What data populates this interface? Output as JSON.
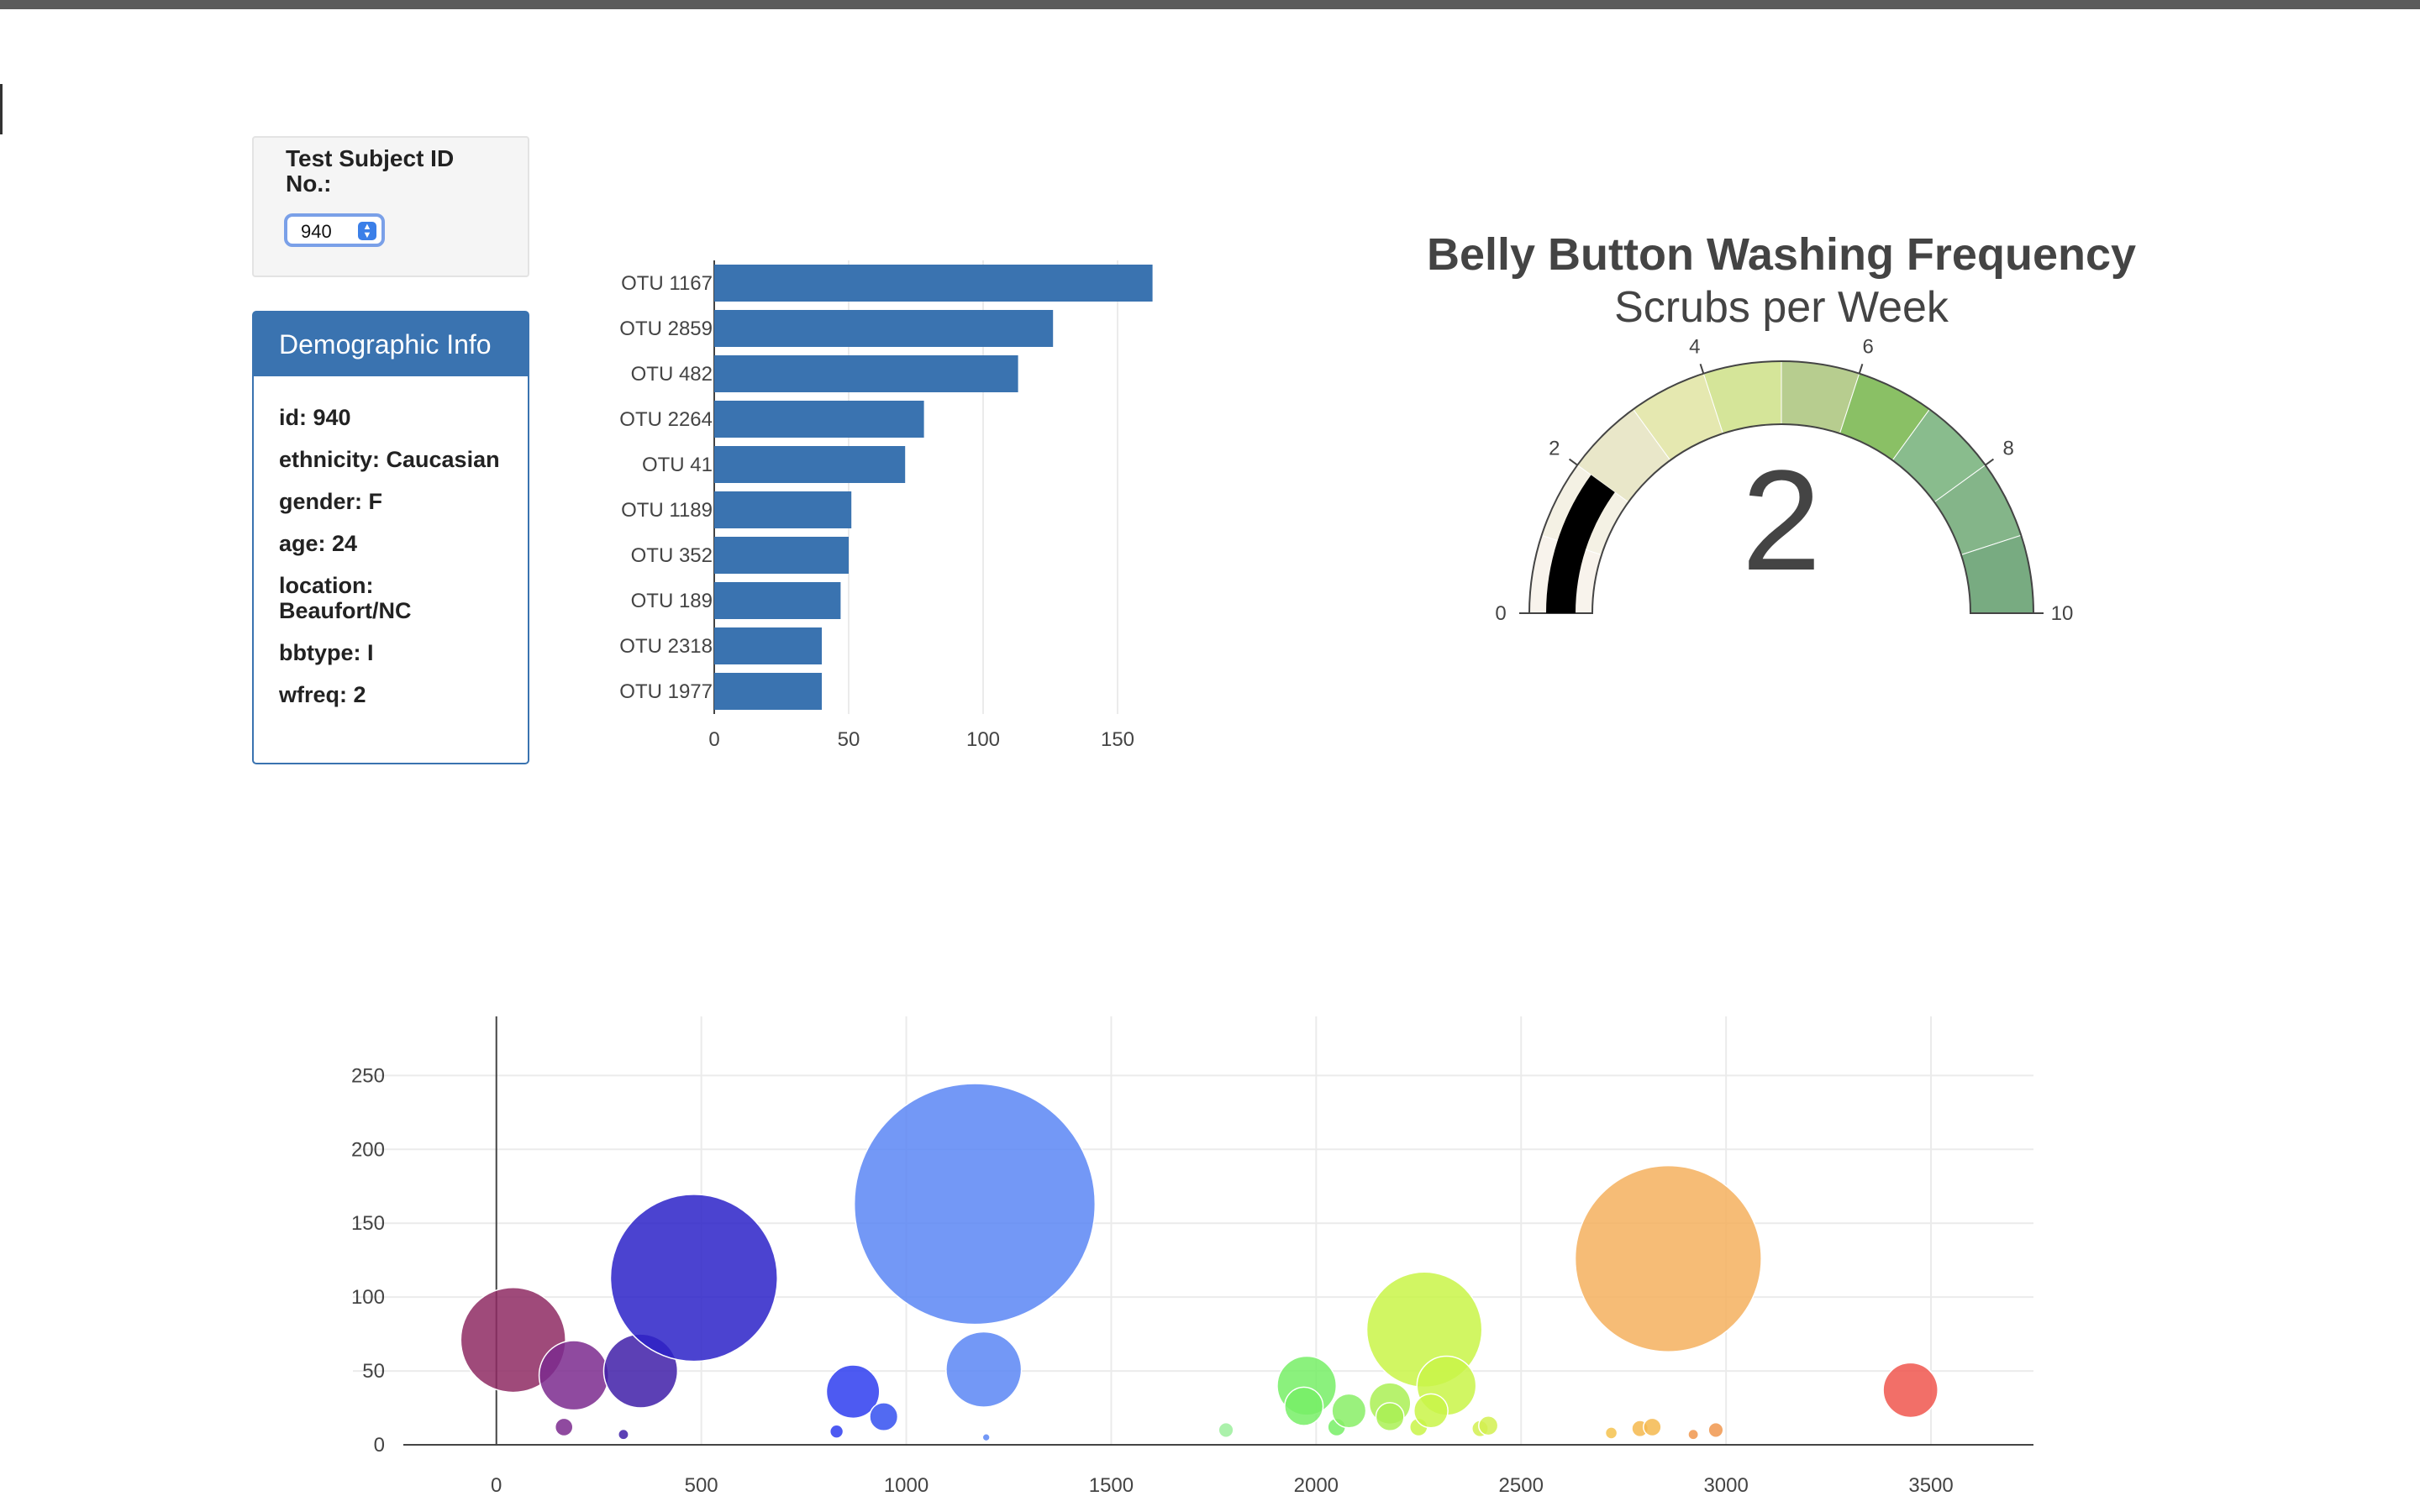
{
  "selector": {
    "label": "Test Subject ID No.:",
    "value": "940"
  },
  "demographics": {
    "title": "Demographic Info",
    "rows": [
      "id: 940",
      "ethnicity: Caucasian",
      "gender: F",
      "age: 24",
      "location: Beaufort/NC",
      "bbtype: I",
      "wfreq: 2"
    ]
  },
  "chart_data": [
    {
      "type": "bar",
      "orientation": "horizontal",
      "categories": [
        "OTU 1167",
        "OTU 2859",
        "OTU 482",
        "OTU 2264",
        "OTU 41",
        "OTU 1189",
        "OTU 352",
        "OTU 189",
        "OTU 2318",
        "OTU 1977"
      ],
      "values": [
        163,
        126,
        113,
        78,
        71,
        51,
        50,
        47,
        40,
        40
      ],
      "xticks": [
        0,
        50,
        100,
        150
      ],
      "xlim": [
        0,
        175
      ],
      "color": "#3a73b0",
      "grid": true
    },
    {
      "type": "gauge",
      "title": "Belly Button Washing Frequency",
      "subtitle": "Scrubs per Week",
      "value": 2,
      "range": [
        0,
        10
      ],
      "ticks": [
        0,
        2,
        4,
        6,
        8,
        10
      ],
      "needle_color": "#000000",
      "band_colors": [
        "#f8f3ec",
        "#f4f1e4",
        "#e9e7c9",
        "#e5e8b0",
        "#d5e599",
        "#b7cd8f",
        "#8ac065",
        "#89bc8d",
        "#84b589",
        "#78ab81"
      ]
    },
    {
      "type": "scatter",
      "subtype": "bubble",
      "xticks": [
        0,
        500,
        1000,
        1500,
        2000,
        2500,
        3000,
        3500
      ],
      "yticks": [
        0,
        50,
        100,
        150,
        200,
        250
      ],
      "xlim": [
        -350,
        3750
      ],
      "ylim": [
        0,
        290
      ],
      "grid": true,
      "points": [
        {
          "x": 41,
          "y": 71,
          "color": "#8e2a63"
        },
        {
          "x": 189,
          "y": 47,
          "color": "#7b2a8e"
        },
        {
          "x": 165,
          "y": 12,
          "color": "#7b2a8e"
        },
        {
          "x": 352,
          "y": 50,
          "color": "#3f1fa8"
        },
        {
          "x": 482,
          "y": 113,
          "color": "#2b22c8"
        },
        {
          "x": 310,
          "y": 7,
          "color": "#3f1fa8"
        },
        {
          "x": 870,
          "y": 36,
          "color": "#2e3df0"
        },
        {
          "x": 945,
          "y": 19,
          "color": "#3450f0"
        },
        {
          "x": 830,
          "y": 9,
          "color": "#2e3df0"
        },
        {
          "x": 1167,
          "y": 163,
          "color": "#5a86f5"
        },
        {
          "x": 1189,
          "y": 51,
          "color": "#5a86f5"
        },
        {
          "x": 1195,
          "y": 5,
          "color": "#5a86f5"
        },
        {
          "x": 1780,
          "y": 10,
          "color": "#9cef9c"
        },
        {
          "x": 1977,
          "y": 40,
          "color": "#77ee66"
        },
        {
          "x": 1970,
          "y": 26,
          "color": "#77ee66"
        },
        {
          "x": 2050,
          "y": 12,
          "color": "#77ee66"
        },
        {
          "x": 2080,
          "y": 23,
          "color": "#88ee66"
        },
        {
          "x": 2180,
          "y": 28,
          "color": "#aaf055"
        },
        {
          "x": 2180,
          "y": 19,
          "color": "#aaf055"
        },
        {
          "x": 2264,
          "y": 78,
          "color": "#c9f548"
        },
        {
          "x": 2250,
          "y": 12,
          "color": "#c9f548"
        },
        {
          "x": 2318,
          "y": 40,
          "color": "#c9f548"
        },
        {
          "x": 2280,
          "y": 23,
          "color": "#c9f548"
        },
        {
          "x": 2400,
          "y": 11,
          "color": "#d2f050"
        },
        {
          "x": 2420,
          "y": 13,
          "color": "#d2f050"
        },
        {
          "x": 2720,
          "y": 8,
          "color": "#f5c24e"
        },
        {
          "x": 2790,
          "y": 11,
          "color": "#f5b84e"
        },
        {
          "x": 2820,
          "y": 12,
          "color": "#f5b84e"
        },
        {
          "x": 2859,
          "y": 126,
          "color": "#f5b05e"
        },
        {
          "x": 2920,
          "y": 7,
          "color": "#f0964e"
        },
        {
          "x": 2975,
          "y": 10,
          "color": "#f0964e"
        },
        {
          "x": 3450,
          "y": 37,
          "color": "#f0564e"
        }
      ]
    }
  ]
}
